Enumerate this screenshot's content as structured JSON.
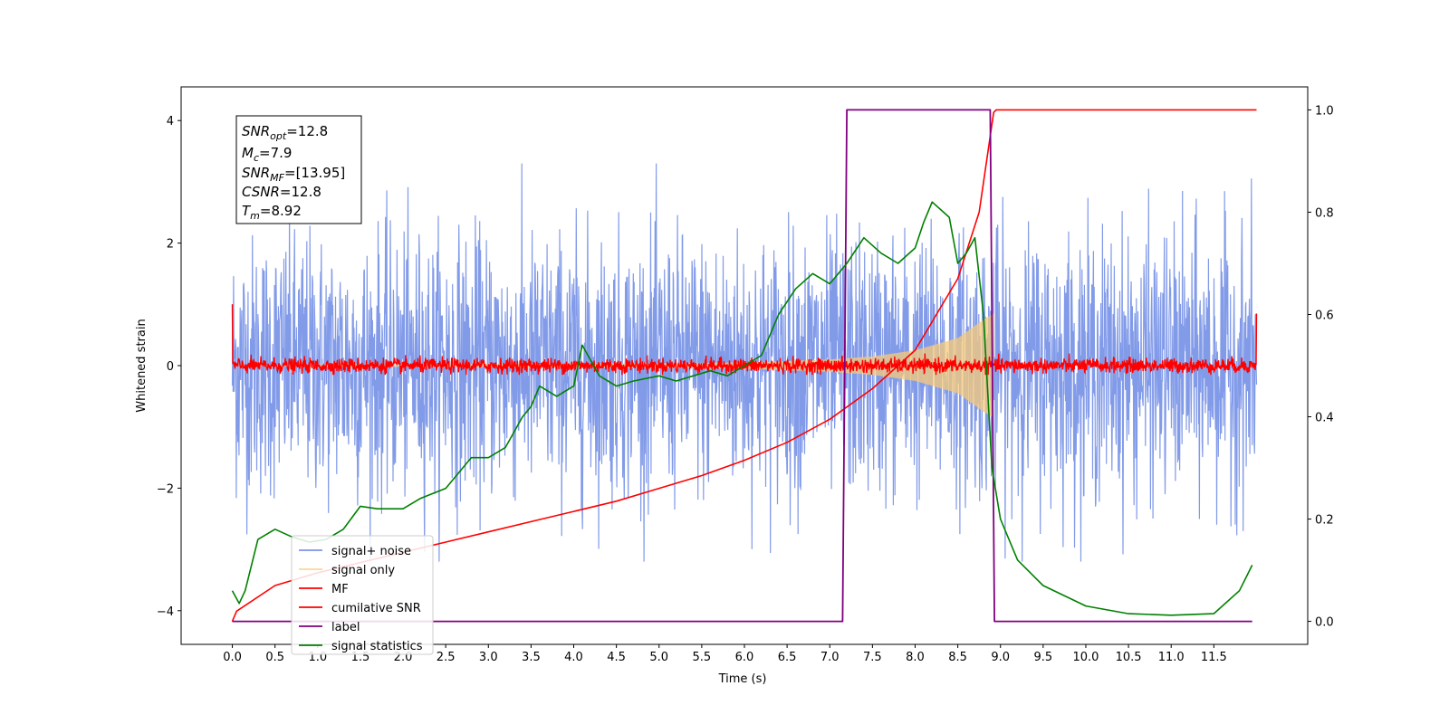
{
  "chart_data": {
    "type": "line",
    "xlabel": "Time (s)",
    "ylabel": "Whitened strain",
    "xlim": [
      -0.6,
      12.6
    ],
    "ylim": [
      -4.55,
      4.55
    ],
    "y2lim": [
      -0.045,
      1.045
    ],
    "x_ticks": [
      0.0,
      0.5,
      1.0,
      1.5,
      2.0,
      2.5,
      3.0,
      3.5,
      4.0,
      4.5,
      5.0,
      5.5,
      6.0,
      6.5,
      7.0,
      7.5,
      8.0,
      8.5,
      9.0,
      9.5,
      10.0,
      10.5,
      11.0,
      11.5
    ],
    "x_tick_labels": [
      "0.0",
      "0.5",
      "1.0",
      "1.5",
      "2.0",
      "2.5",
      "3.0",
      "3.5",
      "4.0",
      "4.5",
      "5.0",
      "5.5",
      "6.0",
      "6.5",
      "7.0",
      "7.5",
      "8.0",
      "8.5",
      "9.0",
      "9.5",
      "10.0",
      "10.5",
      "11.0",
      "11.5"
    ],
    "y_ticks": [
      4,
      2,
      0,
      -2,
      -4
    ],
    "y_tick_labels": [
      "4",
      "2",
      "0",
      "−2",
      "−4"
    ],
    "y2_ticks": [
      1.0,
      0.8,
      0.6,
      0.4,
      0.2,
      0.0
    ],
    "y2_tick_labels": [
      "1.0",
      "0.8",
      "0.6",
      "0.4",
      "0.2",
      "0.0"
    ],
    "grid": false,
    "legend_position": "lower-left",
    "info_box": {
      "snr_opt": "=12.8",
      "mc": "=7.9",
      "snr_mf": "=[13.95]",
      "csnr": "=12.8",
      "tm": "=8.92"
    },
    "series": [
      {
        "name": "signal+ noise",
        "color": "#7b96e8",
        "axis": "left",
        "kind": "noise",
        "x_range": [
          0.0,
          12.0
        ],
        "approx_envelope": [
          -3.2,
          3.3
        ],
        "typical_abs_peak": 2.5
      },
      {
        "name": "signal only",
        "color": "#f5c97a",
        "axis": "left",
        "kind": "chirp",
        "x_range": [
          0.0,
          8.92
        ],
        "envelope": [
          [
            6.0,
            0.05
          ],
          [
            7.0,
            0.1
          ],
          [
            7.5,
            0.15
          ],
          [
            8.0,
            0.25
          ],
          [
            8.5,
            0.45
          ],
          [
            8.8,
            0.75
          ],
          [
            8.92,
            0.85
          ]
        ]
      },
      {
        "name": "MF",
        "color": "#ff0000",
        "axis": "left",
        "kind": "noise",
        "x_range": [
          0.0,
          12.0
        ],
        "approx_envelope": [
          -0.15,
          0.2
        ],
        "edge_values": [
          1.0,
          0.85
        ]
      },
      {
        "name": "cumilative SNR",
        "color": "#ff0000",
        "axis": "right",
        "x": [
          0.0,
          0.05,
          0.5,
          1.0,
          1.5,
          2.0,
          2.5,
          3.0,
          3.5,
          4.0,
          4.5,
          5.0,
          5.5,
          6.0,
          6.5,
          7.0,
          7.5,
          8.0,
          8.5,
          8.75,
          8.92,
          8.95,
          12.0
        ],
        "y": [
          0.0,
          0.02,
          0.07,
          0.095,
          0.115,
          0.135,
          0.155,
          0.175,
          0.195,
          0.215,
          0.235,
          0.26,
          0.285,
          0.315,
          0.35,
          0.395,
          0.455,
          0.53,
          0.67,
          0.8,
          0.995,
          1.0,
          1.0
        ]
      },
      {
        "name": "label",
        "color": "#800080",
        "axis": "right",
        "x": [
          0.0,
          7.15,
          7.2,
          8.88,
          8.93,
          11.95
        ],
        "y": [
          0.0,
          0.0,
          1.0,
          1.0,
          0.0,
          0.0
        ]
      },
      {
        "name": "signal statistics",
        "color": "#008000",
        "axis": "right",
        "x": [
          0.0,
          0.08,
          0.15,
          0.3,
          0.5,
          0.7,
          0.9,
          1.1,
          1.3,
          1.5,
          1.7,
          2.0,
          2.2,
          2.5,
          2.8,
          3.0,
          3.2,
          3.4,
          3.5,
          3.6,
          3.8,
          4.0,
          4.1,
          4.3,
          4.5,
          4.7,
          5.0,
          5.2,
          5.4,
          5.6,
          5.8,
          6.0,
          6.2,
          6.4,
          6.6,
          6.8,
          7.0,
          7.1,
          7.2,
          7.4,
          7.6,
          7.8,
          8.0,
          8.1,
          8.2,
          8.4,
          8.5,
          8.6,
          8.7,
          8.8,
          8.85,
          8.9,
          9.0,
          9.2,
          9.5,
          10.0,
          10.5,
          11.0,
          11.5,
          11.8,
          11.95
        ],
        "y": [
          0.06,
          0.035,
          0.06,
          0.16,
          0.18,
          0.165,
          0.155,
          0.16,
          0.18,
          0.225,
          0.22,
          0.22,
          0.24,
          0.26,
          0.32,
          0.32,
          0.34,
          0.4,
          0.42,
          0.46,
          0.44,
          0.46,
          0.54,
          0.48,
          0.46,
          0.47,
          0.48,
          0.47,
          0.48,
          0.49,
          0.48,
          0.5,
          0.52,
          0.6,
          0.65,
          0.68,
          0.66,
          0.68,
          0.7,
          0.75,
          0.72,
          0.7,
          0.73,
          0.78,
          0.82,
          0.79,
          0.7,
          0.72,
          0.75,
          0.6,
          0.45,
          0.3,
          0.2,
          0.12,
          0.07,
          0.03,
          0.015,
          0.012,
          0.015,
          0.06,
          0.11
        ]
      }
    ]
  }
}
